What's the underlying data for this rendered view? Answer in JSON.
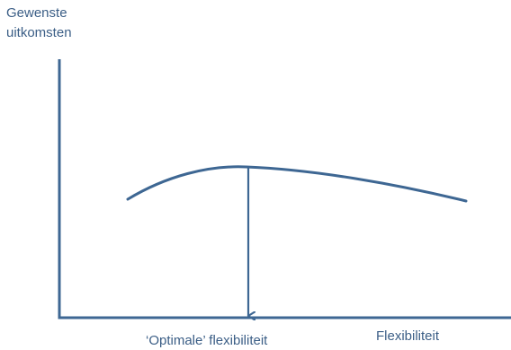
{
  "diagram": {
    "y_axis_label_line1": "Gewenste",
    "y_axis_label_line2": "uitkomsten",
    "x_axis_label": "Flexibiliteit",
    "optimum_label": "‘Optimale’ flexibiliteit",
    "line_color": "#3e6793",
    "text_color": "#3b5e86"
  }
}
